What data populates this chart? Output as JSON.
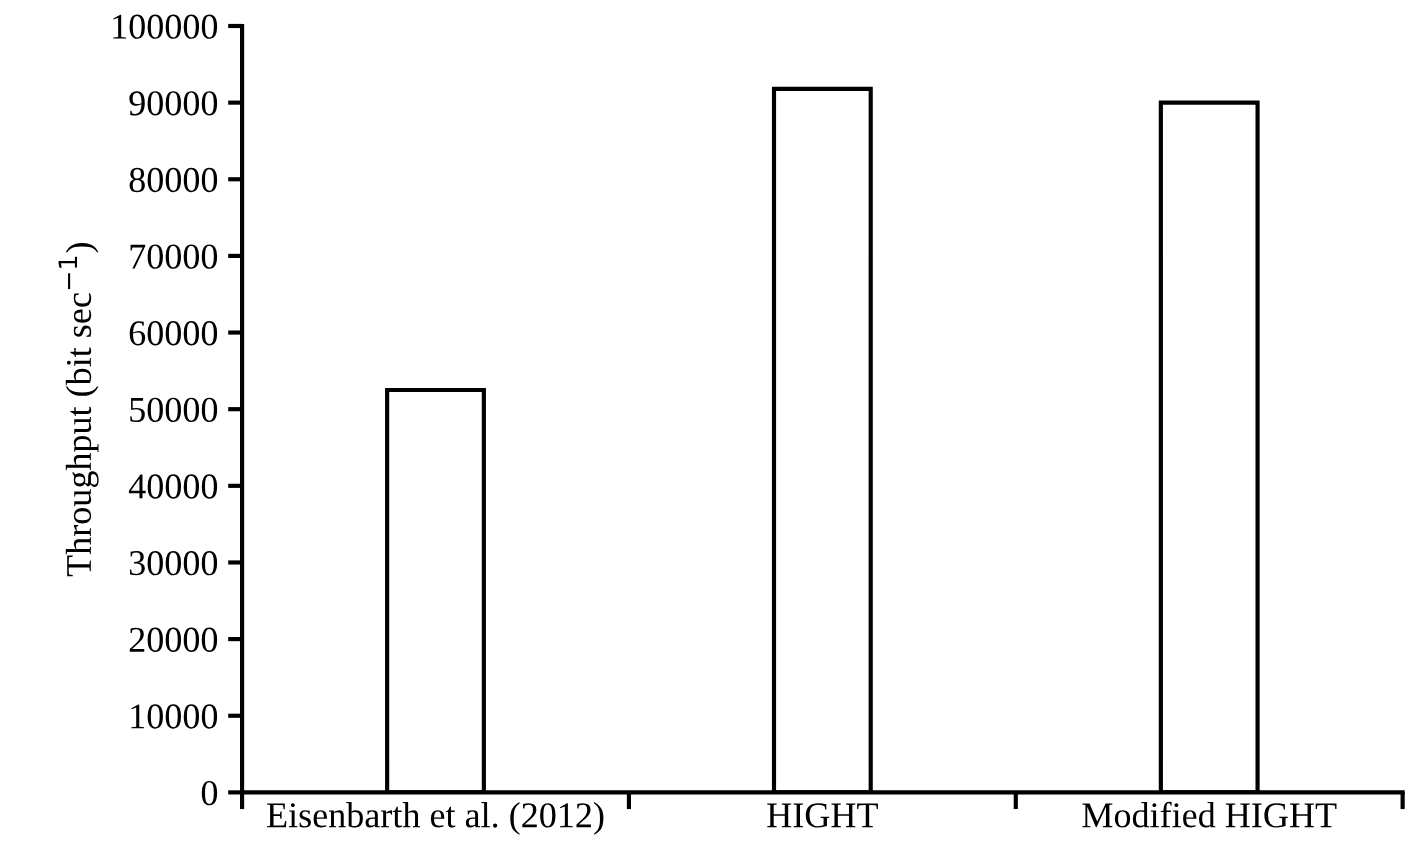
{
  "chart_data": {
    "type": "bar",
    "ylabel": "Throughput (bit sec$^{−1}$)",
    "categories": [
      "Eisenbarth et al. (2012)",
      "HIGHT",
      "Modified HIGHT"
    ],
    "values": [
      52500,
      91800,
      90000
    ],
    "color": "#ffffff",
    "ylim": [
      0,
      100000
    ],
    "yticks": [
      0,
      10000,
      20000,
      30000,
      40000,
      50000,
      60000,
      70000,
      80000,
      90000,
      100000
    ],
    "grid": false
  }
}
